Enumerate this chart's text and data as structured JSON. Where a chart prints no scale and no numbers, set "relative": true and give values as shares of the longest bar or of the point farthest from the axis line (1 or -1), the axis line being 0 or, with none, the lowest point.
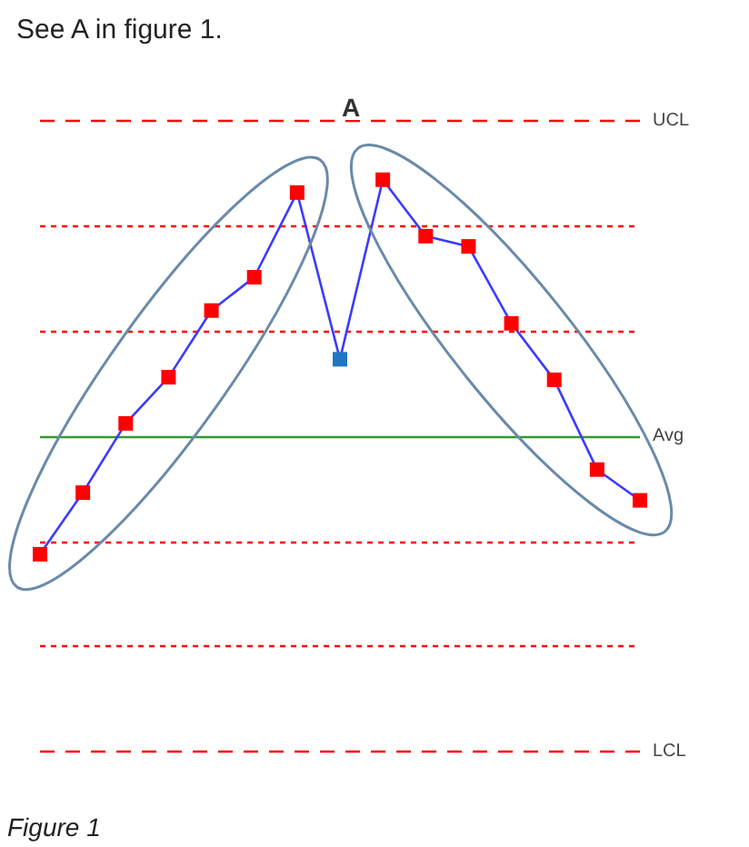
{
  "chart_data": {
    "type": "line",
    "title": "See A in figure 1.",
    "annotations": [
      "A",
      "Figure 1"
    ],
    "relative": true,
    "categories": [
      null,
      null,
      null,
      null,
      null,
      null,
      null,
      null,
      null,
      null,
      null,
      null,
      null,
      null,
      null
    ],
    "series": [
      {
        "color": "#3b3bff",
        "colors": [
          "#ff0000",
          "#ff0000",
          "#ff0000",
          "#ff0000",
          "#ff0000",
          "#ff0000",
          "#ff0000",
          "#1f77c4",
          "#ff0000",
          "#ff0000",
          "#ff0000",
          "#ff0000",
          "#ff0000",
          "#ff0000",
          "#ff0000"
        ],
        "values": [
          -0.46,
          -0.22,
          0.05,
          0.23,
          0.49,
          0.62,
          0.95,
          0.3,
          1,
          0.78,
          0.74,
          0.44,
          0.22,
          -0.13,
          -0.25
        ]
      }
    ],
    "ref_lines": [
      {
        "axis": "y",
        "value": 1.23,
        "label": "UCL",
        "color": "#ff0000",
        "line_style": "dashed"
      },
      {
        "axis": "y",
        "value": 0.82,
        "color": "#ff0000",
        "line_style": "dotted"
      },
      {
        "axis": "y",
        "value": 0.41,
        "color": "#ff0000",
        "line_style": "dotted"
      },
      {
        "axis": "y",
        "value": 0,
        "label": "Avg",
        "color": "#339933",
        "line_style": "solid"
      },
      {
        "axis": "y",
        "value": -0.41,
        "color": "#ff0000",
        "line_style": "dotted"
      },
      {
        "axis": "y",
        "value": -0.82,
        "color": "#ff0000",
        "line_style": "dotted"
      },
      {
        "axis": "y",
        "value": -1.23,
        "label": "LCL",
        "color": "#ff0000",
        "line_style": "dashed"
      }
    ],
    "marker": "square"
  }
}
